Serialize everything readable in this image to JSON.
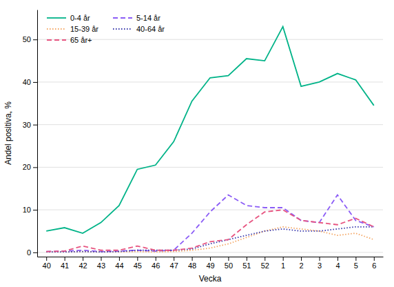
{
  "chart_data": {
    "type": "line",
    "xlabel": "Vecka",
    "ylabel": "Andel positiva, %",
    "categories": [
      "40",
      "41",
      "42",
      "43",
      "44",
      "45",
      "46",
      "47",
      "48",
      "49",
      "50",
      "51",
      "52",
      "1",
      "2",
      "3",
      "4",
      "5",
      "6"
    ],
    "series": [
      {
        "name": "0-4 år",
        "color": "#00b388",
        "line_style": "solid",
        "values": [
          5.0,
          5.8,
          4.5,
          7.0,
          11.0,
          19.5,
          20.5,
          26.0,
          35.5,
          41.0,
          41.5,
          45.5,
          45.0,
          53.0,
          39.0,
          40.0,
          42.0,
          40.5,
          34.5
        ]
      },
      {
        "name": "5-14 år",
        "color": "#8b5cf6",
        "line_style": "dashed",
        "values": [
          0.2,
          0.3,
          0.5,
          0.2,
          0.3,
          0.5,
          0.3,
          0.5,
          4.5,
          9.5,
          13.5,
          11.0,
          10.5,
          10.5,
          7.5,
          7.0,
          13.5,
          7.5,
          6.0
        ]
      },
      {
        "name": "15-39 år",
        "color": "#f4a460",
        "line_style": "dotted",
        "values": [
          0.1,
          0.1,
          0.2,
          0.1,
          0.1,
          0.2,
          0.1,
          0.2,
          0.5,
          1.0,
          2.0,
          3.5,
          5.0,
          6.0,
          5.5,
          5.0,
          4.0,
          4.5,
          3.0
        ]
      },
      {
        "name": "40-64 år",
        "color": "#3333aa",
        "line_style": "dotted",
        "values": [
          0.1,
          0.1,
          0.2,
          0.1,
          0.2,
          0.5,
          0.5,
          0.5,
          0.8,
          2.0,
          3.0,
          4.0,
          5.0,
          5.5,
          5.0,
          5.0,
          5.5,
          6.0,
          6.0
        ]
      },
      {
        "name": "65 år+",
        "color": "#e75480",
        "line_style": "dashed",
        "values": [
          0.2,
          0.3,
          1.5,
          0.5,
          0.5,
          1.5,
          0.5,
          0.5,
          1.0,
          2.5,
          3.0,
          6.5,
          9.5,
          10.0,
          7.5,
          7.0,
          6.5,
          8.0,
          6.0
        ]
      }
    ],
    "ylim": [
      -1,
      57
    ],
    "yticks": [
      0,
      10,
      20,
      30,
      40,
      50
    ],
    "grid": true,
    "legend": "upper left"
  }
}
